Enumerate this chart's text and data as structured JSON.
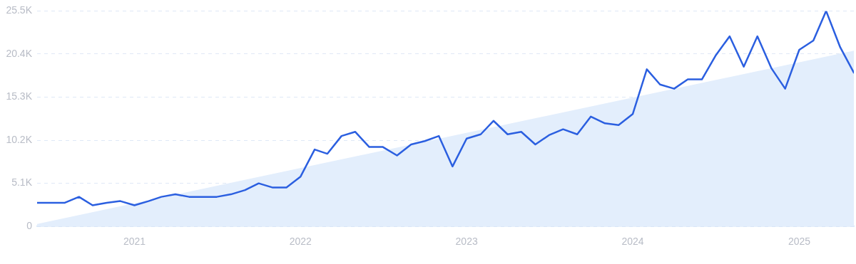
{
  "chart_data": {
    "type": "line",
    "x": [
      "2020-06",
      "2020-07",
      "2020-08",
      "2020-09",
      "2020-10",
      "2020-11",
      "2020-12",
      "2021-01",
      "2021-02",
      "2021-03",
      "2021-04",
      "2021-05",
      "2021-06",
      "2021-07",
      "2021-08",
      "2021-09",
      "2021-10",
      "2021-11",
      "2021-12",
      "2022-01",
      "2022-02",
      "2022-03",
      "2022-04",
      "2022-05",
      "2022-06",
      "2022-07",
      "2022-08",
      "2022-09",
      "2022-10",
      "2022-11",
      "2022-12",
      "2023-01",
      "2023-02",
      "2023-03",
      "2023-04",
      "2023-05",
      "2023-06",
      "2023-07",
      "2023-08",
      "2023-09",
      "2023-10",
      "2023-11",
      "2023-12",
      "2024-01",
      "2024-02",
      "2024-03",
      "2024-04",
      "2024-05",
      "2024-06",
      "2024-07",
      "2024-08",
      "2024-09",
      "2024-10",
      "2024-11",
      "2024-12",
      "2025-01",
      "2025-02",
      "2025-03",
      "2025-04",
      "2025-05"
    ],
    "series": [
      {
        "color": "#2b5fe0",
        "values": [
          2800,
          2800,
          2800,
          3500,
          2500,
          2800,
          3000,
          2500,
          3000,
          3500,
          3800,
          3500,
          3500,
          3500,
          3800,
          4300,
          5100,
          4600,
          4600,
          5900,
          9100,
          8600,
          10700,
          11200,
          9400,
          9400,
          8400,
          9700,
          10100,
          10700,
          7100,
          10400,
          10900,
          12500,
          10900,
          11200,
          9700,
          10800,
          11500,
          10900,
          13000,
          12200,
          12000,
          13300,
          18600,
          16800,
          16300,
          17400,
          17400,
          20200,
          22500,
          18900,
          22500,
          18700,
          16300,
          20900,
          22000,
          25500,
          21200,
          18200
        ]
      },
      {
        "type": "area",
        "color": "#e3eefc",
        "x": [
          "2020-06",
          "2025-05"
        ],
        "values": [
          300,
          20800
        ]
      }
    ],
    "xlim": [
      "2020-06",
      "2025-05"
    ],
    "xticks": [
      "2021",
      "2022",
      "2023",
      "2024",
      "2025"
    ],
    "ylim": [
      0,
      25500
    ],
    "yticks": [
      0,
      {
        "value": 5100,
        "label": "5.1K"
      },
      {
        "value": 10200,
        "label": "10.2K"
      },
      {
        "value": 15300,
        "label": "15.3K"
      },
      {
        "value": 20400,
        "label": "20.4K"
      },
      {
        "value": 25500,
        "label": "25.5K"
      }
    ],
    "grid": "y",
    "legend": false,
    "marker": "none",
    "line_style": "solid"
  }
}
